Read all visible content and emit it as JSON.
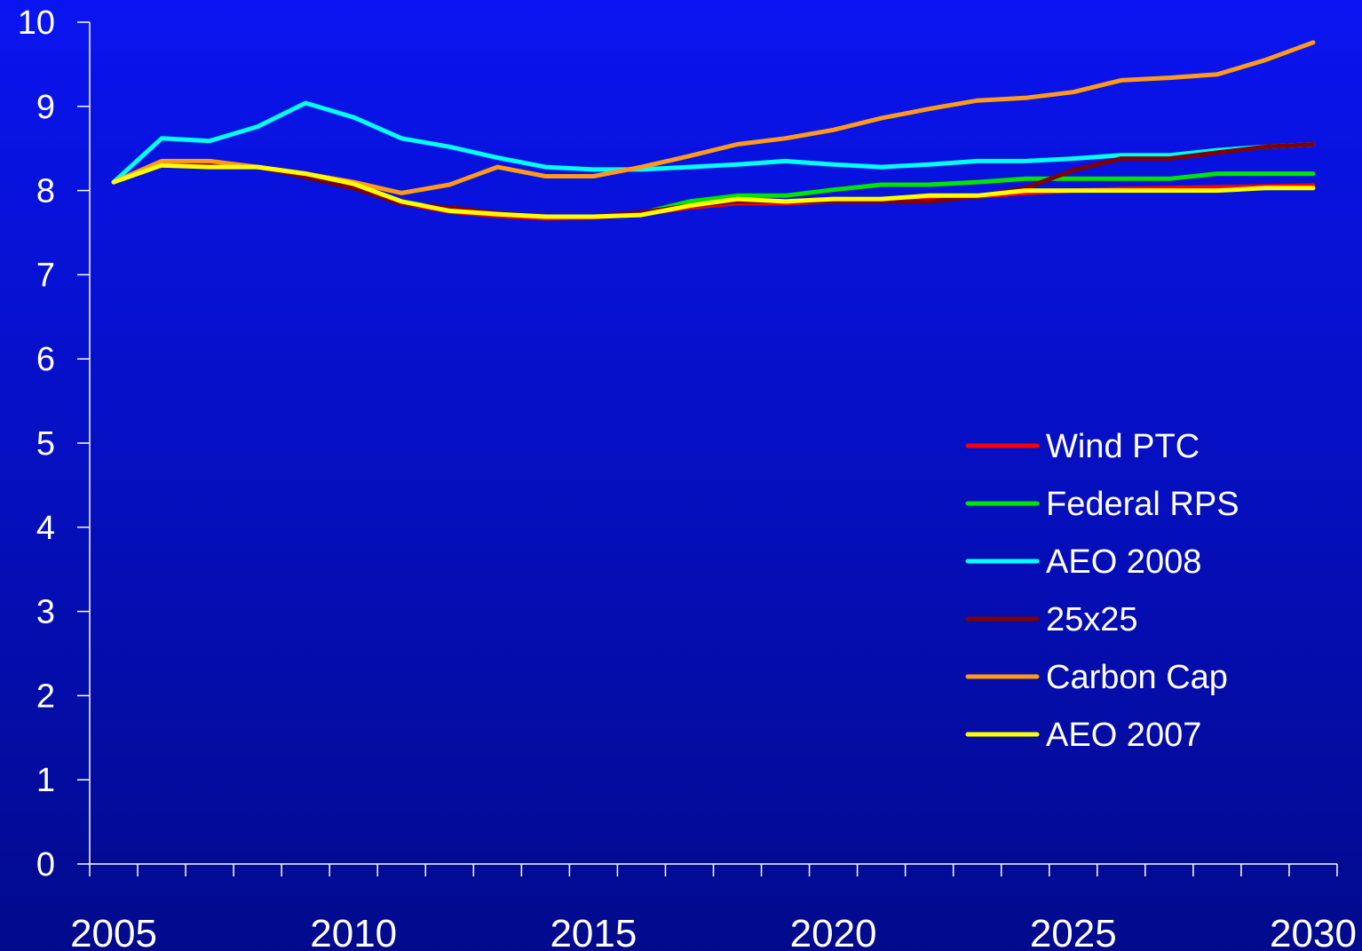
{
  "chart_data": {
    "type": "line",
    "title": "",
    "xlabel": "",
    "ylabel": "",
    "xlim": [
      2005,
      2030
    ],
    "ylim": [
      0,
      10
    ],
    "grid": false,
    "legend_position": "right-center",
    "y_ticks": [
      "0",
      "1",
      "2",
      "3",
      "4",
      "5",
      "6",
      "7",
      "8",
      "9",
      "10"
    ],
    "x_tick_labels": [
      "2005",
      "2010",
      "2015",
      "2020",
      "2025",
      "2030"
    ],
    "x_tick_values": [
      2005,
      2010,
      2015,
      2020,
      2025,
      2030
    ],
    "x": [
      2005,
      2006,
      2007,
      2008,
      2009,
      2010,
      2011,
      2012,
      2013,
      2014,
      2015,
      2016,
      2017,
      2018,
      2019,
      2020,
      2021,
      2022,
      2023,
      2024,
      2025,
      2026,
      2027,
      2028,
      2029,
      2030
    ],
    "series": [
      {
        "name": "Wind PTC",
        "color": "#ff0000",
        "values": [
          8.1,
          8.32,
          8.3,
          8.28,
          8.18,
          8.05,
          7.85,
          7.75,
          7.7,
          7.67,
          7.68,
          7.72,
          7.8,
          7.85,
          7.85,
          7.87,
          7.87,
          7.9,
          7.93,
          7.97,
          8.0,
          8.02,
          8.03,
          8.04,
          8.05,
          8.06
        ]
      },
      {
        "name": "Federal RPS",
        "color": "#00e400",
        "values": [
          8.1,
          8.32,
          8.3,
          8.28,
          8.2,
          8.08,
          7.87,
          7.77,
          7.72,
          7.69,
          7.69,
          7.73,
          7.87,
          7.94,
          7.94,
          8.01,
          8.07,
          8.07,
          8.1,
          8.14,
          8.14,
          8.14,
          8.14,
          8.2,
          8.2,
          8.2
        ]
      },
      {
        "name": "AEO 2008",
        "color": "#00ffff",
        "values": [
          8.1,
          8.62,
          8.59,
          8.76,
          9.04,
          8.87,
          8.62,
          8.52,
          8.39,
          8.28,
          8.25,
          8.25,
          8.28,
          8.31,
          8.35,
          8.31,
          8.28,
          8.31,
          8.35,
          8.35,
          8.38,
          8.42,
          8.42,
          8.48,
          8.52,
          8.55
        ]
      },
      {
        "name": "25x25",
        "color": "#800000",
        "values": [
          8.1,
          8.32,
          8.3,
          8.28,
          8.16,
          8.03,
          7.84,
          7.8,
          7.73,
          7.69,
          7.69,
          7.74,
          7.82,
          7.87,
          7.87,
          7.87,
          7.87,
          7.87,
          7.93,
          8.03,
          8.24,
          8.38,
          8.38,
          8.45,
          8.52,
          8.55
        ]
      },
      {
        "name": "Carbon Cap",
        "color": "#ff9a1a",
        "values": [
          8.1,
          8.35,
          8.35,
          8.28,
          8.2,
          8.1,
          7.97,
          8.07,
          8.28,
          8.17,
          8.17,
          8.28,
          8.41,
          8.55,
          8.62,
          8.72,
          8.86,
          8.97,
          9.07,
          9.1,
          9.17,
          9.31,
          9.34,
          9.38,
          9.55,
          9.76
        ]
      },
      {
        "name": "AEO 2007",
        "color": "#ffff00",
        "values": [
          8.1,
          8.3,
          8.28,
          8.28,
          8.2,
          8.08,
          7.87,
          7.76,
          7.72,
          7.69,
          7.69,
          7.71,
          7.82,
          7.9,
          7.87,
          7.9,
          7.9,
          7.94,
          7.94,
          8.0,
          8.0,
          8.0,
          8.0,
          8.0,
          8.03,
          8.03
        ]
      }
    ]
  }
}
